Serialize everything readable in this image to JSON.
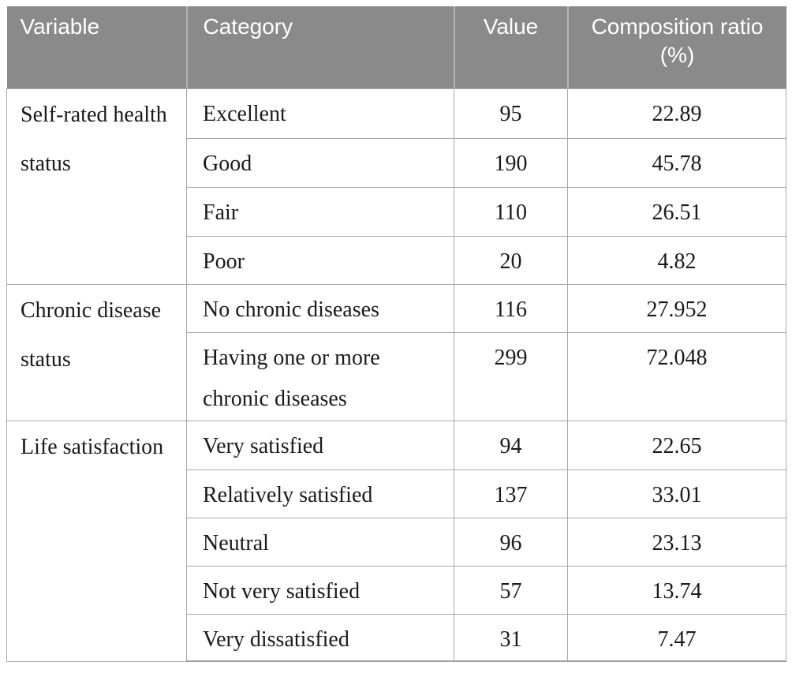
{
  "colors": {
    "header_bg": "#8a8a8a",
    "header_text": "#ffffff",
    "header_divider": "#b3b3b3",
    "border": "#a8a8a8",
    "bottom_border": "#9b9b9b",
    "body_text": "#1a1a1a",
    "page_bg": "#ffffff"
  },
  "table": {
    "columns": [
      {
        "label": "Variable",
        "align": "left"
      },
      {
        "label": "Category",
        "align": "left"
      },
      {
        "label": "Value",
        "align": "center"
      },
      {
        "label": "Composition ratio (%)",
        "align": "center"
      }
    ],
    "groups": [
      {
        "variable": "Self-rated health status",
        "rows": [
          {
            "category": "Excellent",
            "value": "95",
            "ratio": "22.89"
          },
          {
            "category": "Good",
            "value": "190",
            "ratio": "45.78"
          },
          {
            "category": "Fair",
            "value": "110",
            "ratio": "26.51"
          },
          {
            "category": "Poor",
            "value": "20",
            "ratio": "4.82"
          }
        ]
      },
      {
        "variable": "Chronic disease status",
        "rows": [
          {
            "category": "No chronic diseases",
            "value": "116",
            "ratio": "27.952"
          },
          {
            "category": "Having one or more chronic diseases",
            "value": "299",
            "ratio": "72.048"
          }
        ]
      },
      {
        "variable": "Life satisfaction",
        "rows": [
          {
            "category": "Very satisfied",
            "value": "94",
            "ratio": "22.65"
          },
          {
            "category": "Relatively satisfied",
            "value": "137",
            "ratio": "33.01"
          },
          {
            "category": "Neutral",
            "value": "96",
            "ratio": "23.13"
          },
          {
            "category": "Not very satisfied",
            "value": "57",
            "ratio": "13.74"
          },
          {
            "category": "Very dissatisfied",
            "value": "31",
            "ratio": "7.47"
          }
        ]
      }
    ]
  }
}
